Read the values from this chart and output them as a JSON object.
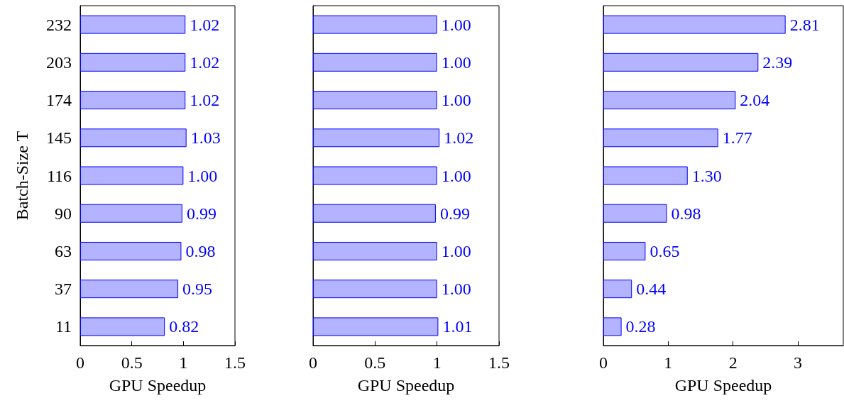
{
  "chart_data": [
    {
      "type": "bar",
      "orientation": "horizontal",
      "ylabel": "Batch-Size T",
      "xlabel": "GPU Speedup",
      "categories": [
        "232",
        "203",
        "174",
        "145",
        "116",
        "90",
        "63",
        "37",
        "11"
      ],
      "series": [
        {
          "color": "#b3b3ff",
          "values": [
            1.02,
            1.02,
            1.02,
            1.03,
            1.0,
            0.99,
            0.98,
            0.95,
            0.82
          ],
          "value_labels": [
            "1.02",
            "1.02",
            "1.02",
            "1.03",
            "1.00",
            "0.99",
            "0.98",
            "0.95",
            "0.82"
          ]
        }
      ],
      "xlim": [
        0,
        1.5
      ],
      "xticks": [
        0,
        0.5,
        1,
        1.5
      ]
    },
    {
      "type": "bar",
      "orientation": "horizontal",
      "xlabel": "GPU Speedup",
      "categories": [
        "232",
        "203",
        "174",
        "145",
        "116",
        "90",
        "63",
        "37",
        "11"
      ],
      "series": [
        {
          "color": "#b3b3ff",
          "values": [
            1.0,
            1.0,
            1.0,
            1.02,
            1.0,
            0.99,
            1.0,
            1.0,
            1.01
          ],
          "value_labels": [
            "1.00",
            "1.00",
            "1.00",
            "1.02",
            "1.00",
            "0.99",
            "1.00",
            "1.00",
            "1.01"
          ]
        }
      ],
      "xlim": [
        0,
        1.5
      ],
      "xticks": [
        0,
        0.5,
        1,
        1.5
      ],
      "tick_labels": "x"
    },
    {
      "type": "bar",
      "orientation": "horizontal",
      "xlabel": "GPU Speedup",
      "categories": [
        "232",
        "203",
        "174",
        "145",
        "116",
        "90",
        "63",
        "37",
        "11"
      ],
      "series": [
        {
          "color": "#b3b3ff",
          "values": [
            2.81,
            2.39,
            2.04,
            1.77,
            1.3,
            0.98,
            0.65,
            0.44,
            0.28
          ],
          "value_labels": [
            "2.81",
            "2.39",
            "2.04",
            "1.77",
            "1.30",
            "0.98",
            "0.65",
            "0.44",
            "0.28"
          ]
        }
      ],
      "xlim": [
        0,
        3.7
      ],
      "xticks": [
        0,
        1,
        2,
        3
      ],
      "tick_labels": "x"
    }
  ]
}
